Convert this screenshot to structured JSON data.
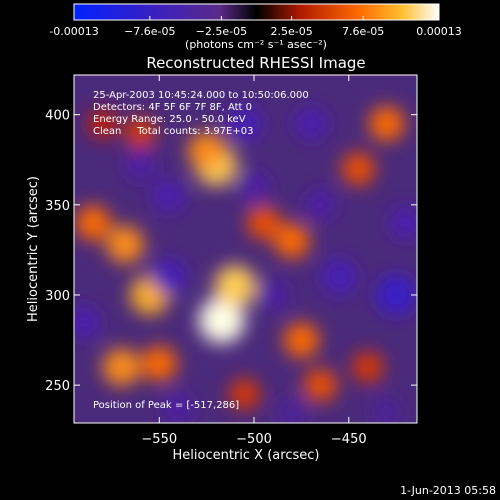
{
  "chart_data": {
    "type": "heatmap",
    "title": "Reconstructed RHESSI Image",
    "xlabel": "Heliocentric X (arcsec)",
    "ylabel": "Heliocentric Y (arcsec)",
    "xlim": [
      -595,
      -414
    ],
    "ylim": [
      229,
      422
    ],
    "x_ticks": [
      -550,
      -500,
      -450
    ],
    "y_ticks": [
      250,
      300,
      350,
      400
    ],
    "colorbar": {
      "min": -0.00013,
      "max": 0.00013,
      "tick_values": [
        -0.00013,
        -7.6e-05,
        -2.5e-05,
        2.5e-05,
        7.6e-05,
        0.00013
      ],
      "tick_labels": [
        "-0.00013",
        "−7.6e-05",
        "−2.5e-05",
        "2.5e-05",
        "7.6e-05",
        "0.00013"
      ],
      "unit_label": "(photons cm⁻² s⁻¹ asec⁻²)"
    },
    "annotations": [
      "25-Apr-2003 10:45:24.000 to 10:50:06.000",
      "Detectors: 4F 5F 6F 7F 8F, Att 0",
      "Energy Range: 25.0 - 50.0 keV",
      "Clean     Total counts: 3.97E+03"
    ],
    "peak_label": "Position of Peak = [-517,286]",
    "peak_position": [
      -517,
      286
    ],
    "blobs": [
      {
        "x": -517,
        "y": 286,
        "value": 0.00013
      },
      {
        "x": -510,
        "y": 305,
        "value": 0.00011
      },
      {
        "x": -555,
        "y": 300,
        "value": 0.0001
      },
      {
        "x": -568,
        "y": 328,
        "value": 9e-05
      },
      {
        "x": -585,
        "y": 340,
        "value": 8e-05
      },
      {
        "x": -570,
        "y": 260,
        "value": 9e-05
      },
      {
        "x": -550,
        "y": 262,
        "value": 8e-05
      },
      {
        "x": -520,
        "y": 372,
        "value": 0.00011
      },
      {
        "x": -525,
        "y": 380,
        "value": 9e-05
      },
      {
        "x": -495,
        "y": 340,
        "value": 7e-05
      },
      {
        "x": -480,
        "y": 330,
        "value": 8e-05
      },
      {
        "x": -475,
        "y": 275,
        "value": 8e-05
      },
      {
        "x": -465,
        "y": 250,
        "value": 7e-05
      },
      {
        "x": -445,
        "y": 370,
        "value": 7e-05
      },
      {
        "x": -430,
        "y": 395,
        "value": 8e-05
      },
      {
        "x": -440,
        "y": 260,
        "value": 6e-05
      },
      {
        "x": -560,
        "y": 390,
        "value": 6e-05
      },
      {
        "x": -580,
        "y": 395,
        "value": 5e-05
      },
      {
        "x": -505,
        "y": 245,
        "value": 6e-05
      },
      {
        "x": -545,
        "y": 355,
        "value": -7e-05
      },
      {
        "x": -545,
        "y": 310,
        "value": -8e-05
      },
      {
        "x": -590,
        "y": 285,
        "value": -7e-05
      },
      {
        "x": -505,
        "y": 395,
        "value": -8e-05
      },
      {
        "x": -470,
        "y": 395,
        "value": -7e-05
      },
      {
        "x": -425,
        "y": 300,
        "value": -0.0001
      },
      {
        "x": -420,
        "y": 340,
        "value": -7e-05
      },
      {
        "x": -500,
        "y": 360,
        "value": -6e-05
      },
      {
        "x": -490,
        "y": 300,
        "value": -6e-05
      },
      {
        "x": -540,
        "y": 237,
        "value": -6e-05
      },
      {
        "x": -455,
        "y": 310,
        "value": -8e-05
      },
      {
        "x": -465,
        "y": 350,
        "value": -6e-05
      },
      {
        "x": -560,
        "y": 372,
        "value": -6e-05
      },
      {
        "x": -480,
        "y": 235,
        "value": -5e-05
      },
      {
        "x": -430,
        "y": 235,
        "value": -5e-05
      }
    ]
  },
  "footer": {
    "date": "1-Jun-2013 05:58"
  }
}
